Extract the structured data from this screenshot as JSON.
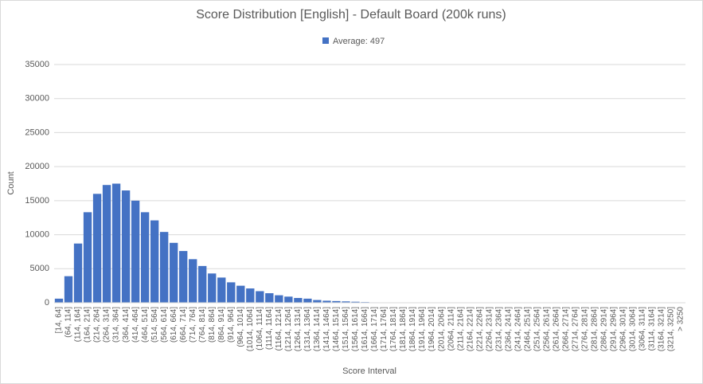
{
  "chart_data": {
    "type": "bar",
    "title": "Score Distribution [English] - Default Board (200k runs)",
    "xlabel": "Score Interval",
    "ylabel": "Count",
    "legend": "top",
    "categories": [
      "[14, 64]",
      "(64, 114]",
      "(114, 164]",
      "(164, 214]",
      "(214, 264]",
      "(264, 314]",
      "(314, 364]",
      "(364, 414]",
      "(414, 464]",
      "(464, 514]",
      "(514, 564]",
      "(564, 614]",
      "(614, 664]",
      "(664, 714]",
      "(714, 764]",
      "(764, 814]",
      "(814, 864]",
      "(864, 914]",
      "(914, 964]",
      "(964, 1014]",
      "(1014, 1064]",
      "(1064, 1114]",
      "(1114, 1164]",
      "(1164, 1214]",
      "(1214, 1264]",
      "(1264, 1314]",
      "(1314, 1364]",
      "(1364, 1414]",
      "(1414, 1464]",
      "(1464, 1514]",
      "(1514, 1564]",
      "(1564, 1614]",
      "(1614, 1664]",
      "(1664, 1714]",
      "(1714, 1764]",
      "(1764, 1814]",
      "(1814, 1864]",
      "(1864, 1914]",
      "(1914, 1964]",
      "(1964, 2014]",
      "(2014, 2064]",
      "(2064, 2114]",
      "(2114, 2164]",
      "(2164, 2214]",
      "(2214, 2264]",
      "(2264, 2314]",
      "(2314, 2364]",
      "(2364, 2414]",
      "(2414, 2464]",
      "(2464, 2514]",
      "(2514, 2564]",
      "(2564, 2614]",
      "(2614, 2664]",
      "(2664, 2714]",
      "(2714, 2764]",
      "(2764, 2814]",
      "(2814, 2864]",
      "(2864, 2914]",
      "(2914, 2964]",
      "(2964, 3014]",
      "(3014, 3064]",
      "(3064, 3114]",
      "(3114, 3164]",
      "(3164, 3214]",
      "(3214, 3250]",
      "> 3250"
    ],
    "series": [
      {
        "name": "Average: 497",
        "color": "#4472c4",
        "values": [
          600,
          3900,
          8700,
          13300,
          16000,
          17300,
          17500,
          16500,
          15000,
          13300,
          12100,
          10400,
          8800,
          7600,
          6400,
          5400,
          4300,
          3700,
          3000,
          2500,
          2100,
          1700,
          1400,
          1100,
          900,
          700,
          600,
          400,
          300,
          250,
          200,
          150,
          100,
          60,
          40,
          25,
          15,
          10,
          5,
          3,
          2,
          1,
          1,
          0,
          0,
          0,
          0,
          0,
          0,
          0,
          0,
          0,
          0,
          0,
          0,
          0,
          0,
          0,
          0,
          0,
          0,
          0,
          0,
          0,
          0,
          0
        ]
      }
    ],
    "ylim": [
      0,
      35000
    ],
    "yticks": [
      0,
      5000,
      10000,
      15000,
      20000,
      25000,
      30000,
      35000
    ],
    "grid": true
  }
}
